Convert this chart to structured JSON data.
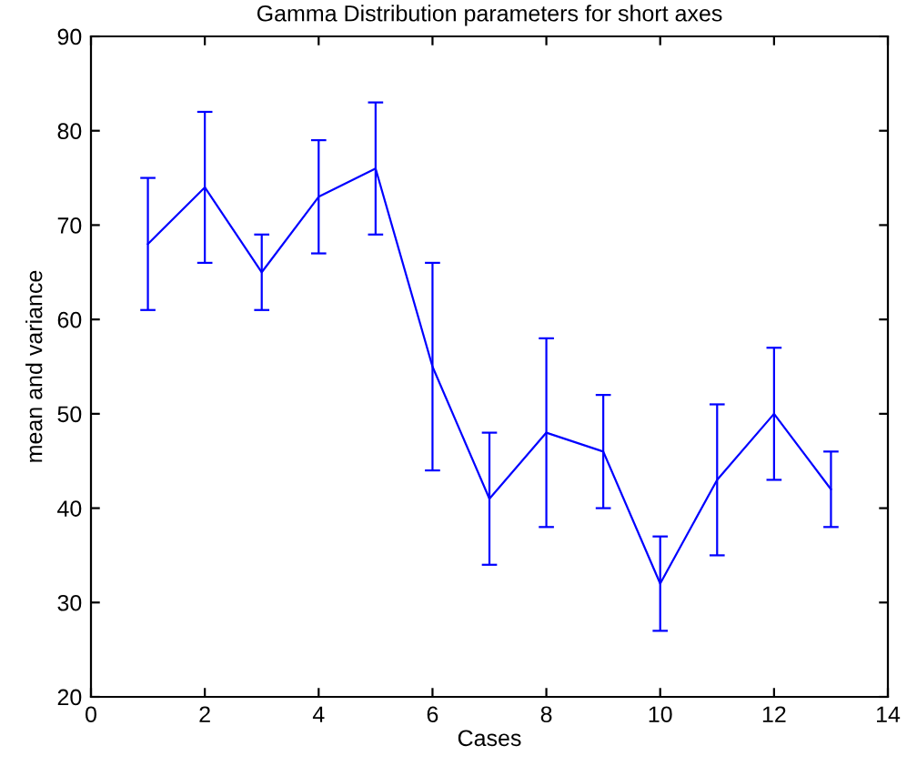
{
  "chart_data": {
    "type": "line",
    "title": "Gamma Distribution parameters for short axes",
    "xlabel": "Cases",
    "ylabel": "mean and variance",
    "x": [
      1,
      2,
      3,
      4,
      5,
      6,
      7,
      8,
      9,
      10,
      11,
      12,
      13
    ],
    "series": [
      {
        "color": "#0000ff",
        "values": [
          68,
          74,
          65,
          73,
          76,
          55,
          41,
          48,
          46,
          32,
          43,
          50,
          42
        ],
        "errors": [
          7,
          8,
          4,
          6,
          7,
          11,
          7,
          10,
          6,
          5,
          8,
          7,
          4
        ]
      }
    ],
    "xlim": [
      0,
      14
    ],
    "xticks": [
      0,
      2,
      4,
      6,
      8,
      10,
      12,
      14
    ],
    "ylim": [
      20,
      90
    ],
    "yticks": [
      20,
      30,
      40,
      50,
      60,
      70,
      80,
      90
    ],
    "grid": false,
    "marker": "none",
    "line_style": "solid"
  }
}
